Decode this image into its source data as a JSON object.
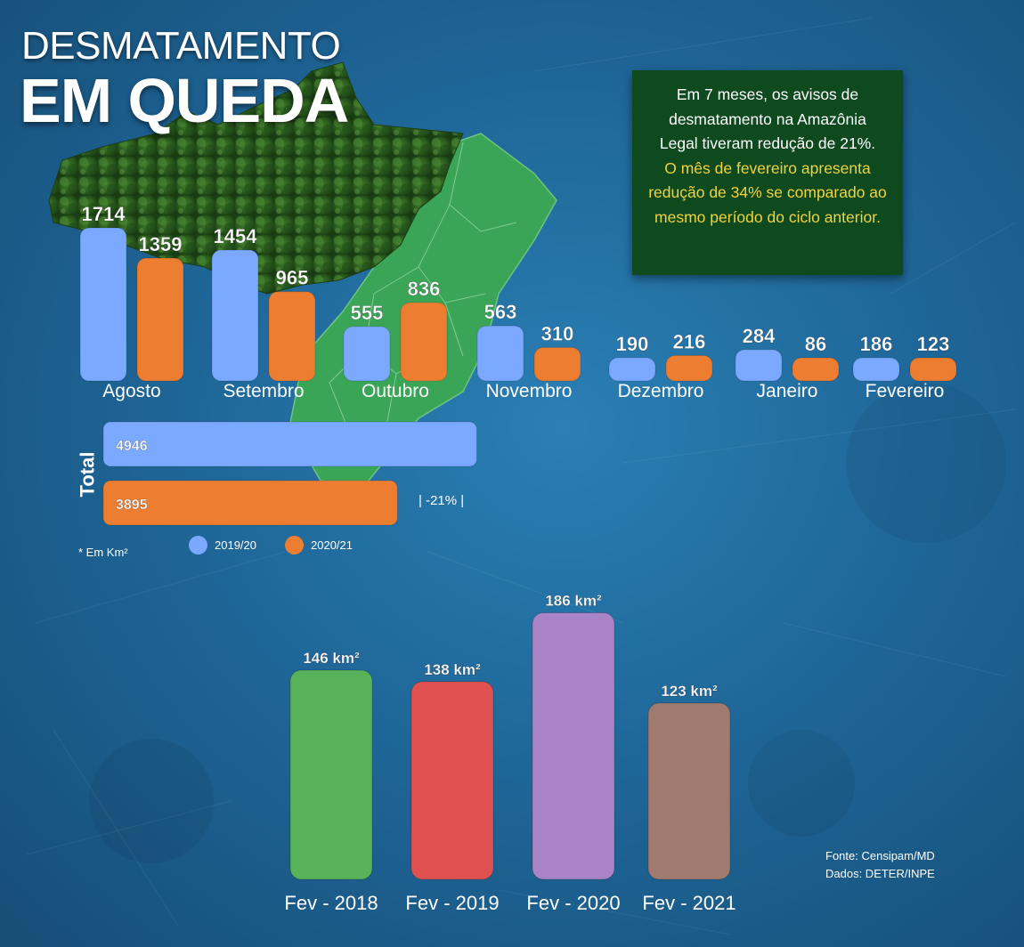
{
  "title": {
    "line1": "DESMATAMENTO",
    "line2": "EM QUEDA"
  },
  "info": {
    "white": "Em 7 meses, os avisos de desmatamento na Amazônia Legal tiveram redução de 21%.",
    "yellow": "O mês de fevereiro apresenta redução de 34% se comparado ao mesmo período do ciclo anterior."
  },
  "colors": {
    "s2019": "#7aa9ff",
    "s2020": "#ed7d31",
    "fev2018": "#58b25a",
    "fev2019": "#e05252",
    "fev2020": "#a985c8",
    "fev2021": "#a07a6e",
    "infobox": "#0e4a1e",
    "highlight": "#f1d241"
  },
  "chart_data": [
    {
      "type": "bar",
      "categories": [
        "Agosto",
        "Setembro",
        "Outubro",
        "Novembro",
        "Dezembro",
        "Janeiro",
        "Fevereiro"
      ],
      "series": [
        {
          "name": "2019/20",
          "values": [
            1714,
            1454,
            555,
            563,
            190,
            284,
            186
          ]
        },
        {
          "name": "2020/21",
          "values": [
            1359,
            965,
            836,
            310,
            216,
            86,
            123
          ]
        }
      ],
      "ylabel": "",
      "legend": "bottom"
    },
    {
      "type": "bar",
      "orientation": "horizontal",
      "ylabel": "Total",
      "series": [
        {
          "name": "2019/20",
          "values": [
            4946
          ]
        },
        {
          "name": "2020/21",
          "values": [
            3895
          ]
        }
      ],
      "annotation": "-21%"
    },
    {
      "type": "bar",
      "categories": [
        "Fev - 2018",
        "Fev - 2019",
        "Fev - 2020",
        "Fev - 2021"
      ],
      "values": [
        146,
        138,
        186,
        123
      ],
      "labels": [
        "146 km²",
        "138 km²",
        "186 km²",
        "123 km²"
      ]
    }
  ],
  "legend": {
    "s1": "2019/20",
    "s2": "2020/21"
  },
  "total_label": "Total",
  "pct_label": "-21%",
  "unit_note": "* Em Km²",
  "source": {
    "line1": "Fonte: Censipam/MD",
    "line2": "Dados: DETER/INPE"
  }
}
